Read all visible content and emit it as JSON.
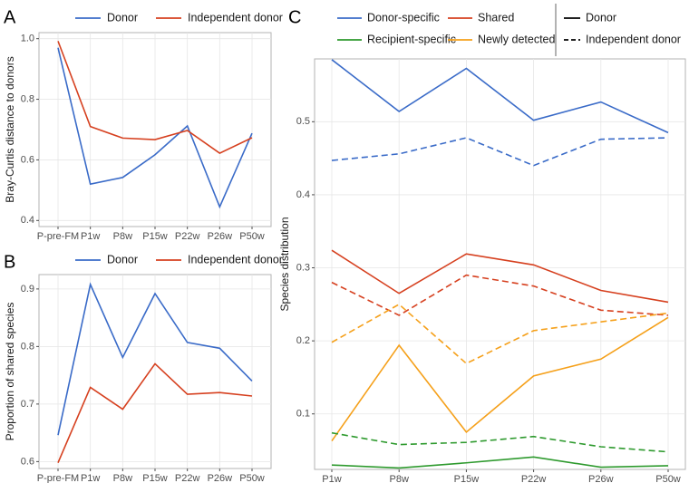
{
  "chart_data": [
    {
      "type": "line",
      "panel_label": "A",
      "ylabel": "Bray-Curtis distance to donors",
      "categories": [
        "P-pre-FM",
        "P1w",
        "P8w",
        "P15w",
        "P22w",
        "P26w",
        "P50w"
      ],
      "series": [
        {
          "name": "Donor",
          "color": "#3a6bc8",
          "values": [
            0.97,
            0.52,
            0.542,
            0.617,
            0.712,
            0.445,
            0.688
          ]
        },
        {
          "name": "Independent donor",
          "color": "#d6401f",
          "values": [
            0.992,
            0.71,
            0.672,
            0.667,
            0.697,
            0.622,
            0.673
          ]
        }
      ],
      "ylim": [
        0.38,
        1.02
      ],
      "yticks": [
        0.4,
        0.6,
        0.8,
        {
          "value": 1,
          "label": "1.0"
        }
      ],
      "grid": true,
      "legend": "top"
    },
    {
      "type": "line",
      "panel_label": "B",
      "ylabel": "Proportion of shared species",
      "categories": [
        "P-pre-FM",
        "P1w",
        "P8w",
        "P15w",
        "P22w",
        "P26w",
        "P50w"
      ],
      "series": [
        {
          "name": "Donor",
          "color": "#3a6bc8",
          "values": [
            0.646,
            0.908,
            0.781,
            0.892,
            0.807,
            0.797,
            0.74
          ]
        },
        {
          "name": "Independent donor",
          "color": "#d6401f",
          "values": [
            0.598,
            0.729,
            0.691,
            0.77,
            0.717,
            0.72,
            0.714
          ]
        }
      ],
      "ylim": [
        0.588,
        0.925
      ],
      "yticks": [
        0.6,
        0.7,
        0.8,
        0.9
      ],
      "grid": true,
      "legend": "top"
    },
    {
      "type": "multiline",
      "panel_label": "C",
      "ylabel": "Species distribution",
      "categories": [
        "P1w",
        "P8w",
        "P15w",
        "P22w",
        "P26w",
        "P50w"
      ],
      "groups": [
        {
          "name": "Donor-specific",
          "color": "#3a6bc8"
        },
        {
          "name": "Shared",
          "color": "#d6401f"
        },
        {
          "name": "Recipient-specific",
          "color": "#2e9a2e"
        },
        {
          "name": "Newly detected",
          "color": "#f5a01a"
        }
      ],
      "linetypes": [
        {
          "name": "Donor",
          "dash": "solid"
        },
        {
          "name": "Independent donor",
          "dash": "dashed"
        }
      ],
      "series": [
        {
          "group": 0,
          "linetype": 0,
          "values": [
            0.585,
            0.514,
            0.573,
            0.502,
            0.527,
            0.485
          ]
        },
        {
          "group": 0,
          "linetype": 1,
          "values": [
            0.447,
            0.456,
            0.478,
            0.44,
            0.476,
            0.478
          ]
        },
        {
          "group": 1,
          "linetype": 0,
          "values": [
            0.324,
            0.265,
            0.319,
            0.304,
            0.269,
            0.253
          ]
        },
        {
          "group": 1,
          "linetype": 1,
          "values": [
            0.28,
            0.235,
            0.29,
            0.275,
            0.242,
            0.235
          ]
        },
        {
          "group": 3,
          "linetype": 0,
          "values": [
            0.063,
            0.194,
            0.075,
            0.152,
            0.175,
            0.232
          ]
        },
        {
          "group": 3,
          "linetype": 1,
          "values": [
            0.198,
            0.25,
            0.169,
            0.214,
            0.226,
            0.238
          ]
        },
        {
          "group": 2,
          "linetype": 0,
          "values": [
            0.03,
            0.026,
            0.033,
            0.041,
            0.027,
            0.029
          ]
        },
        {
          "group": 2,
          "linetype": 1,
          "values": [
            0.074,
            0.058,
            0.061,
            0.069,
            0.055,
            0.048
          ]
        }
      ],
      "ylim": [
        0.024,
        0.586
      ],
      "yticks": [
        0.1,
        0.2,
        0.3,
        0.4,
        0.5
      ],
      "grid": true,
      "legend": "top"
    }
  ]
}
